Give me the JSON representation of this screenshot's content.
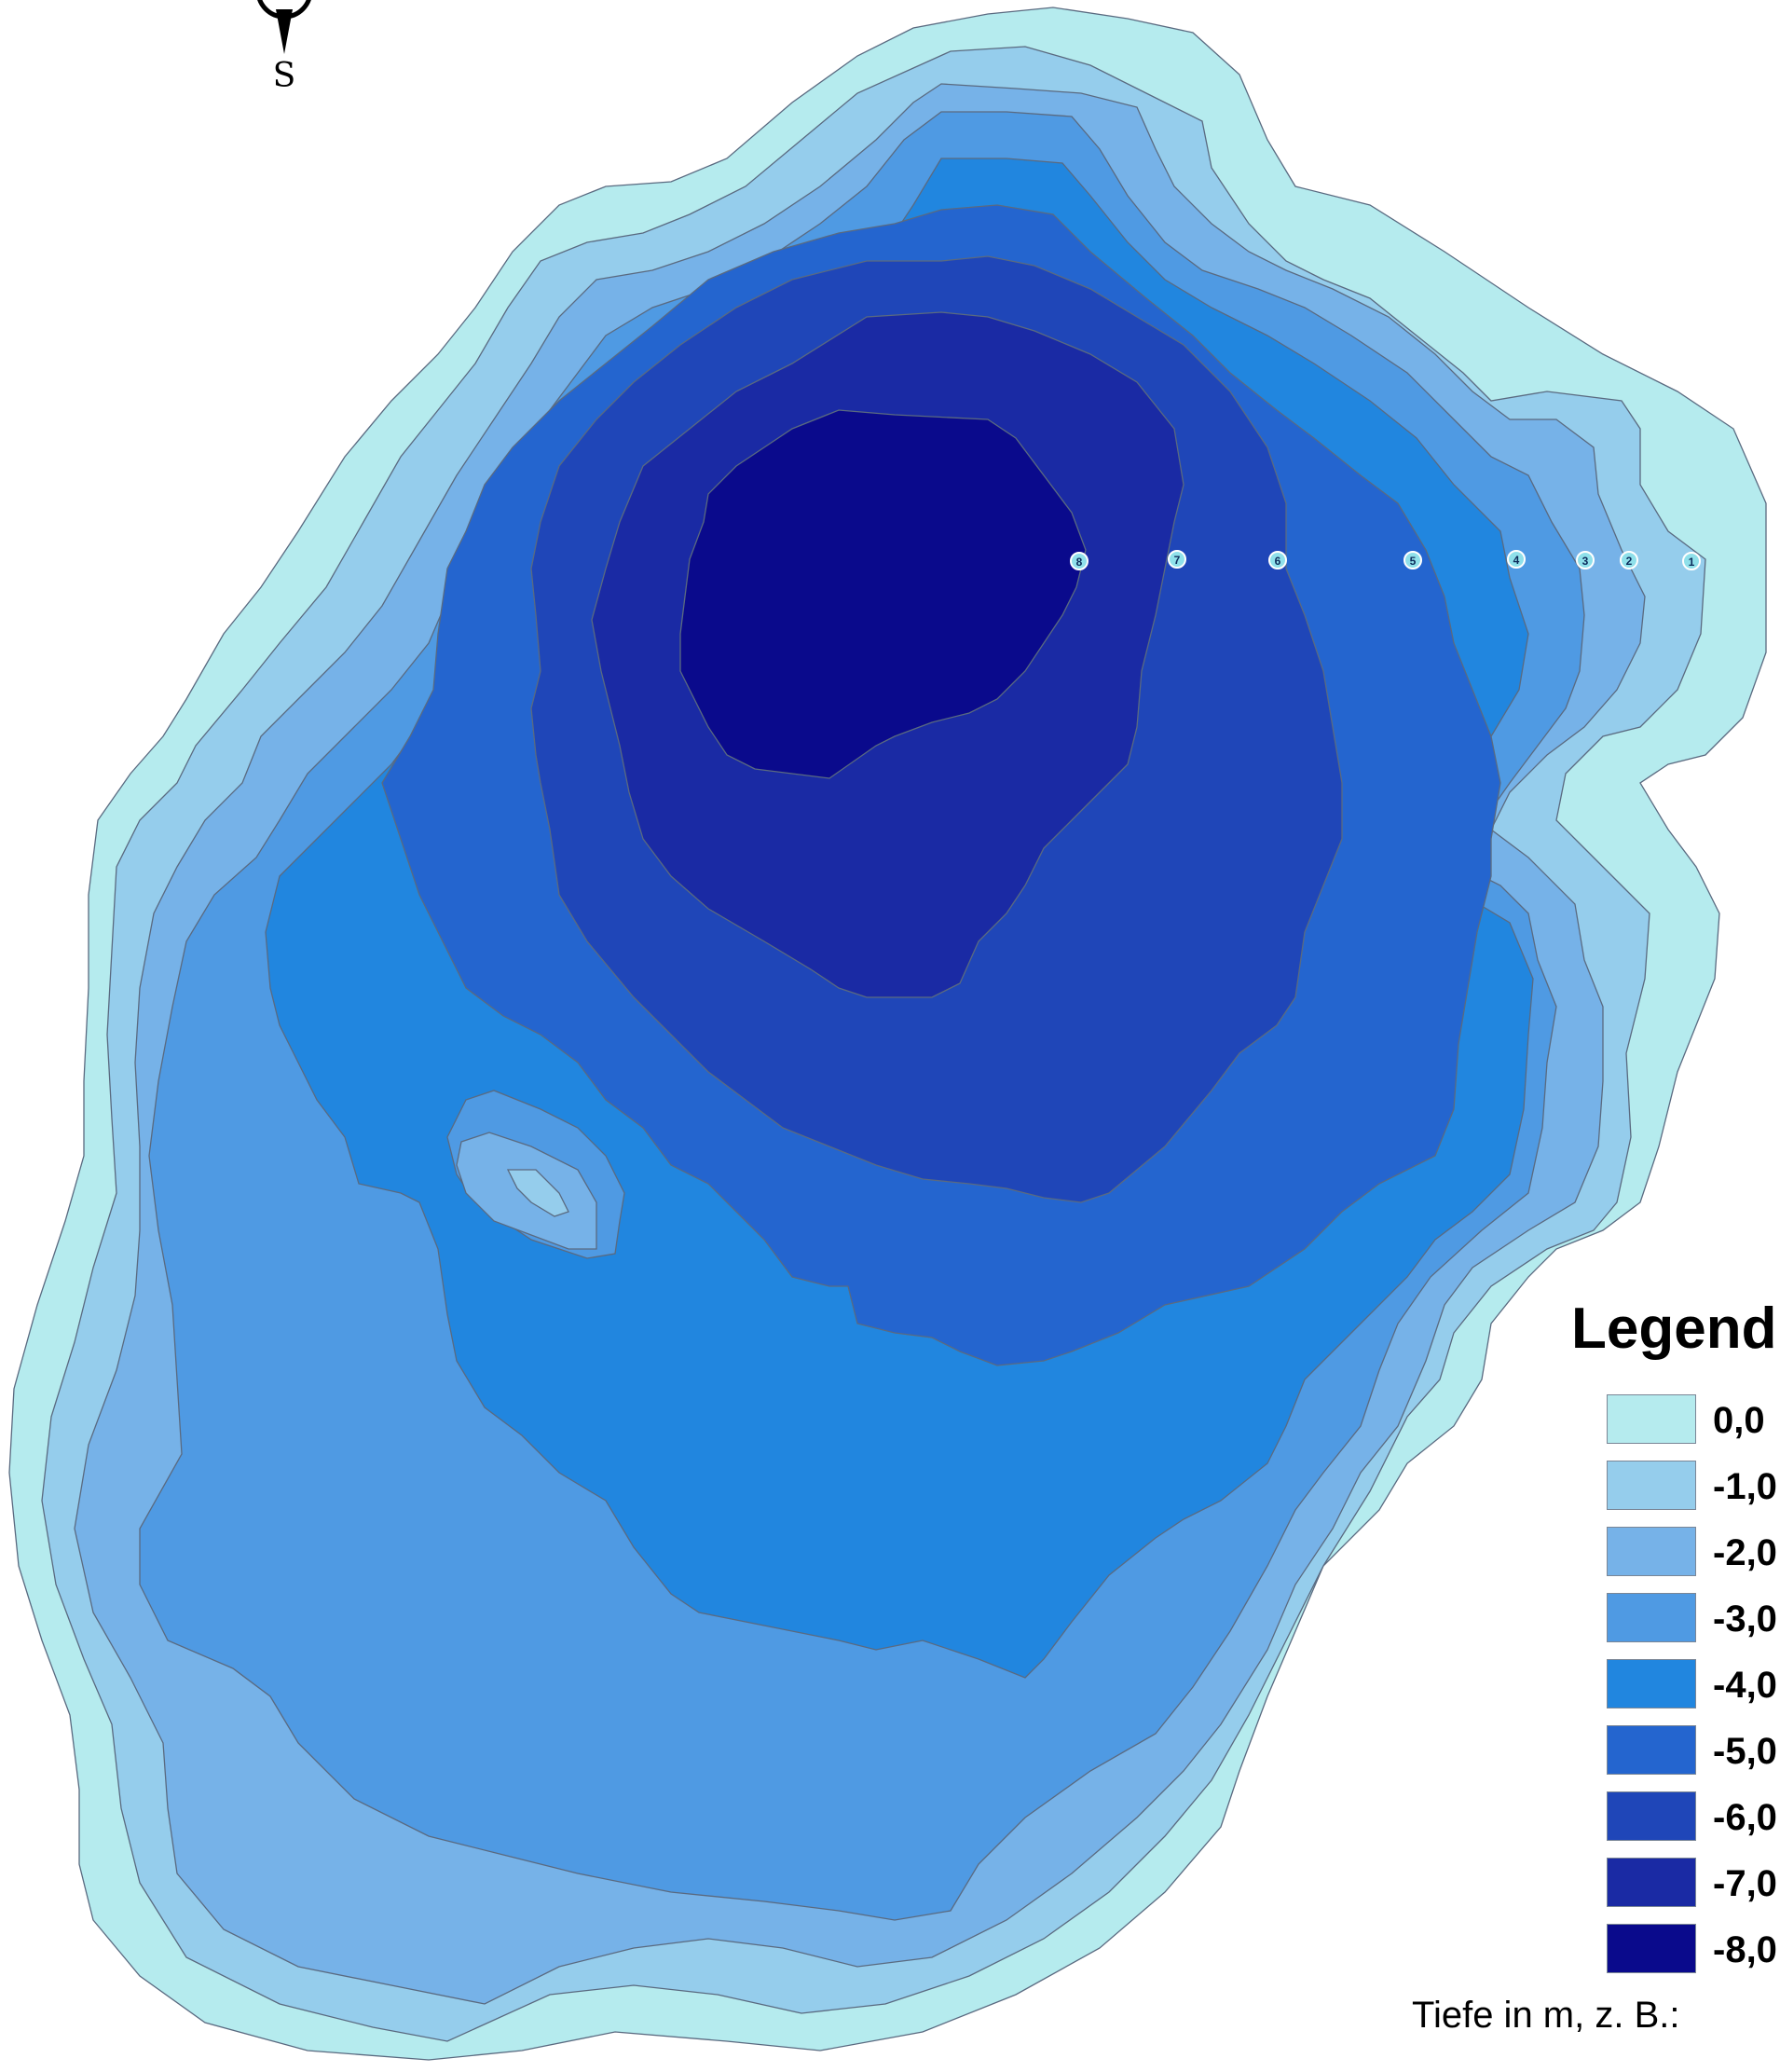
{
  "compass": {
    "south_label": "S"
  },
  "depth_markers": [
    "8",
    "7",
    "6",
    "5",
    "4",
    "3",
    "2",
    "1"
  ],
  "legend": {
    "title": "Legend",
    "items": [
      {
        "label": "0,0",
        "color": "#b5ebee"
      },
      {
        "label": "-1,0",
        "color": "#95cdec"
      },
      {
        "label": "-2,0",
        "color": "#76b2e8"
      },
      {
        "label": "-3,0",
        "color": "#4f9ae3"
      },
      {
        "label": "-4,0",
        "color": "#2186df"
      },
      {
        "label": "-5,0",
        "color": "#2465cf"
      },
      {
        "label": "-6,0",
        "color": "#1f46b8"
      },
      {
        "label": "-7,0",
        "color": "#1a2aa4"
      },
      {
        "label": "-8,0",
        "color": "#0a0a8c"
      }
    ],
    "caption": "Tiefe in m, z. B.:"
  },
  "contours": [
    {
      "depth": "0,0",
      "color": "#b5ebee"
    },
    {
      "depth": "-1,0",
      "color": "#95cdec"
    },
    {
      "depth": "-2,0",
      "color": "#76b2e8"
    },
    {
      "depth": "-3,0",
      "color": "#4f9ae3"
    },
    {
      "depth": "-4,0",
      "color": "#2186df"
    },
    {
      "depth": "-5,0",
      "color": "#2465cf"
    },
    {
      "depth": "-6,0",
      "color": "#1f46b8"
    },
    {
      "depth": "-7,0",
      "color": "#1a2aa4"
    },
    {
      "depth": "-8,0",
      "color": "#0a0a8c"
    }
  ],
  "shoal": [
    {
      "depth": "-3,0",
      "color": "#4f9ae3"
    },
    {
      "depth": "-2,0",
      "color": "#76b2e8"
    },
    {
      "depth": "-1,0",
      "color": "#95cdec"
    }
  ]
}
